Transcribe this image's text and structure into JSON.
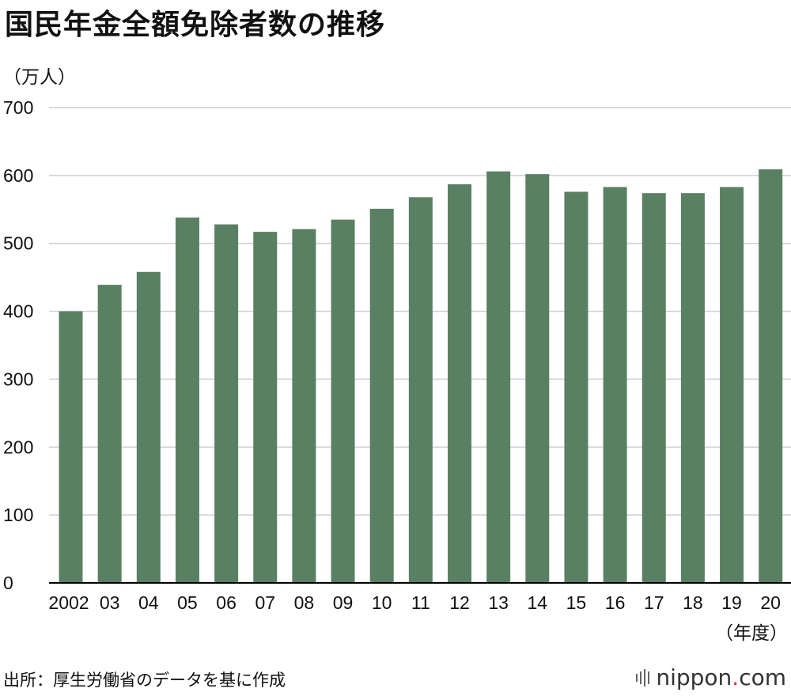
{
  "title": "国民年金全額免除者数の推移",
  "y_unit": "（万人）",
  "x_unit": "（年度）",
  "source": "出所：厚生労働省のデータを基に作成",
  "logo": {
    "name": "nippon",
    "dot": ".",
    "tld": "com"
  },
  "colors": {
    "bar": "#5a8064",
    "grid": "#cfcfcf",
    "axis": "#000000"
  },
  "chart_data": {
    "type": "bar",
    "title": "国民年金全額免除者数の推移",
    "xlabel": "（年度）",
    "ylabel": "（万人）",
    "categories": [
      "2002",
      "03",
      "04",
      "05",
      "06",
      "07",
      "08",
      "09",
      "10",
      "11",
      "12",
      "13",
      "14",
      "15",
      "16",
      "17",
      "18",
      "19",
      "20"
    ],
    "values": [
      400,
      439,
      458,
      538,
      528,
      517,
      521,
      535,
      551,
      568,
      587,
      606,
      602,
      576,
      583,
      574,
      574,
      583,
      609
    ],
    "ylim": [
      0,
      700
    ],
    "yticks": [
      0,
      100,
      200,
      300,
      400,
      500,
      600,
      700
    ],
    "grid": true,
    "legend": "none"
  }
}
